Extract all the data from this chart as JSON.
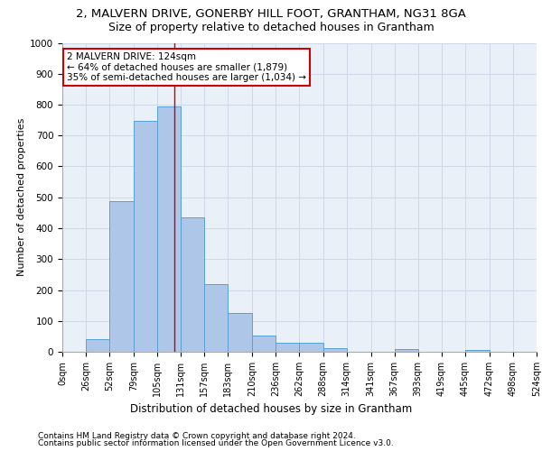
{
  "title1": "2, MALVERN DRIVE, GONERBY HILL FOOT, GRANTHAM, NG31 8GA",
  "title2": "Size of property relative to detached houses in Grantham",
  "xlabel": "Distribution of detached houses by size in Grantham",
  "ylabel": "Number of detached properties",
  "footer1": "Contains HM Land Registry data © Crown copyright and database right 2024.",
  "footer2": "Contains public sector information licensed under the Open Government Licence v3.0.",
  "annotation_title": "2 MALVERN DRIVE: 124sqm",
  "annotation_line1": "← 64% of detached houses are smaller (1,879)",
  "annotation_line2": "35% of semi-detached houses are larger (1,034) →",
  "bar_left_edges": [
    0,
    26,
    52,
    79,
    105,
    131,
    157,
    183,
    210,
    236,
    262,
    288,
    314,
    341,
    367,
    393,
    419,
    445,
    472,
    498
  ],
  "bar_widths": [
    26,
    26,
    27,
    26,
    26,
    26,
    26,
    27,
    26,
    26,
    26,
    26,
    27,
    26,
    26,
    26,
    26,
    27,
    26,
    26
  ],
  "bar_heights": [
    0,
    42,
    487,
    748,
    795,
    435,
    218,
    127,
    53,
    28,
    28,
    11,
    0,
    0,
    8,
    0,
    0,
    7,
    0,
    0
  ],
  "bar_color": "#aec6e8",
  "bar_edge_color": "#5a9fd4",
  "vline_x": 124,
  "vline_color": "#cc0000",
  "xlim": [
    0,
    524
  ],
  "ylim": [
    0,
    1000
  ],
  "xtick_labels": [
    "0sqm",
    "26sqm",
    "52sqm",
    "79sqm",
    "105sqm",
    "131sqm",
    "157sqm",
    "183sqm",
    "210sqm",
    "236sqm",
    "262sqm",
    "288sqm",
    "314sqm",
    "341sqm",
    "367sqm",
    "393sqm",
    "419sqm",
    "445sqm",
    "472sqm",
    "498sqm",
    "524sqm"
  ],
  "xtick_positions": [
    0,
    26,
    52,
    79,
    105,
    131,
    157,
    183,
    210,
    236,
    262,
    288,
    314,
    341,
    367,
    393,
    419,
    445,
    472,
    498,
    524
  ],
  "ytick_positions": [
    0,
    100,
    200,
    300,
    400,
    500,
    600,
    700,
    800,
    900,
    1000
  ],
  "grid_color": "#d0d8e8",
  "bg_color": "#eaf0f8",
  "box_color": "#cc0000",
  "title1_fontsize": 9.5,
  "title2_fontsize": 9,
  "axis_label_fontsize": 8,
  "tick_fontsize": 7,
  "annotation_fontsize": 7.5,
  "footer_fontsize": 6.5
}
